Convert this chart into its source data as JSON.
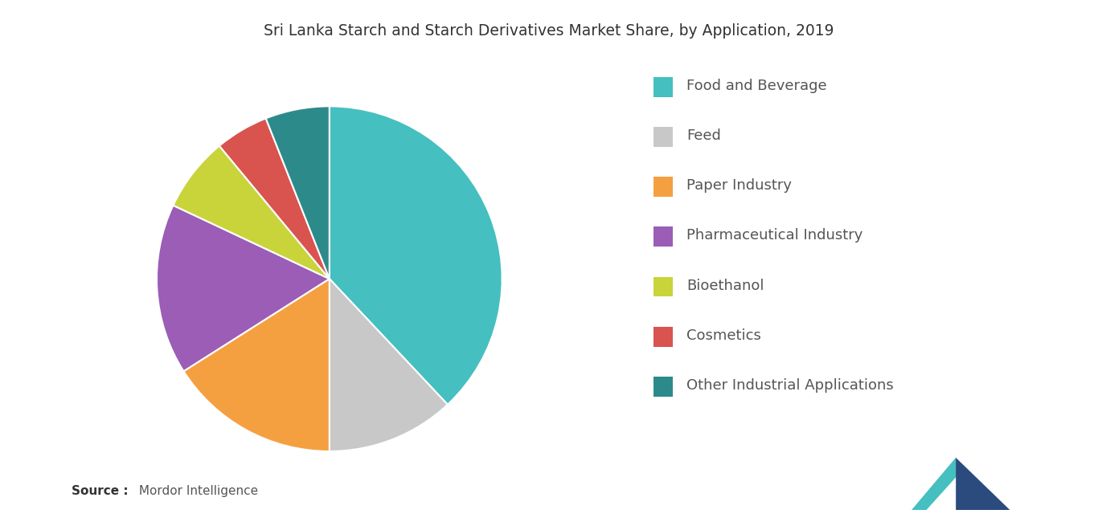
{
  "title": "Sri Lanka Starch and Starch Derivatives Market Share, by Application, 2019",
  "labels": [
    "Food and Beverage",
    "Feed",
    "Paper Industry",
    "Pharmaceutical Industry",
    "Bioethanol",
    "Cosmetics",
    "Other Industrial Applications"
  ],
  "values": [
    38,
    12,
    16,
    16,
    7,
    5,
    6
  ],
  "colors": [
    "#45BFBF",
    "#C8C8C8",
    "#F5A040",
    "#9B5DB5",
    "#C8D43A",
    "#D9534F",
    "#2D8A8A"
  ],
  "startangle": 90,
  "background_color": "#ffffff",
  "title_fontsize": 13.5,
  "legend_fontsize": 13,
  "source_bold": "Source :",
  "source_normal": " Mordor Intelligence"
}
